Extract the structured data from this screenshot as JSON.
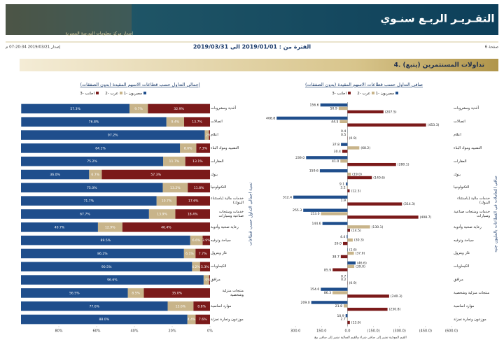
{
  "header": {
    "title": "التقـريـر الربـع سنـوي",
    "publisher": "إصدار مركز معلومات البورصة المصرية",
    "page": "صفحة 6",
    "period": "الفترة من : 2019/01/01 الى 2019/03/31",
    "issued": "إصدار 2019/03/21 07:20:34 م"
  },
  "section": "4. تداولات المستثمرين (يتبع)",
  "chart_data": [
    {
      "type": "bar",
      "orientation": "horizontal",
      "stacked": true,
      "title": "إجمالي التداول حسب قطاعات الاسهم المقيدة (بدون الصفقات)",
      "y_label": "نسبة اجمالي التداول حسب قطاعات",
      "categories": [
        "أغذية ومشروبات",
        "اتصالات",
        "اعلام",
        "التشييد ومواد البناء",
        "العقارات",
        "بنوك",
        "التكنولوجيا",
        "خدمات مالية (باستثناء البنوك)",
        "خدمات ومنتجات صناعية وسيارات",
        "رعاية صحية وأدوية",
        "سياحة وترفيه",
        "غاز وبترول",
        "الكيماويات",
        "مرافق",
        "منتجات منزلية وشخصية",
        "موارد اساسية",
        "موزعون وتجارة تجزئة"
      ],
      "series": [
        {
          "name": "مصريون -1",
          "color": "#1f4e8c",
          "values": [
            57.3,
            76.8,
            97.2,
            84.1,
            75.2,
            36.0,
            75.0,
            71.7,
            67.7,
            40.7,
            89.5,
            86.2,
            90.5,
            96.6,
            56.5,
            77.6,
            88.0
          ],
          "value_labels": [
            "57.3%",
            "76.8%",
            "97.2%",
            "84.1%",
            "75.2%",
            "36.0%",
            "75.0%",
            "71.7%",
            "67.7%",
            "40.7%",
            "89.5%",
            "86.2%",
            "90.5%",
            "96.6%",
            "56.5%",
            "77.6%",
            "88.0%"
          ]
        },
        {
          "name": "عرب -2",
          "color": "#c8b48a",
          "values": [
            9.7,
            9.4,
            2.2,
            8.6,
            11.7,
            6.7,
            13.2,
            10.7,
            13.9,
            12.9,
            6.6,
            6.1,
            4.2,
            2.9,
            8.5,
            13.6,
            4.4
          ],
          "value_labels": [
            "9.7%",
            "9.4%",
            "2.2%",
            "8.6%",
            "11.7%",
            "6.7%",
            "13.2%",
            "10.7%",
            "13.9%",
            "12.9%",
            "6.6%",
            "6.1%",
            "4.2%",
            "2.9%",
            "8.5%",
            "13.6%",
            "4.4%"
          ]
        },
        {
          "name": "اجانب -3",
          "color": "#7b1a1a",
          "values": [
            32.9,
            13.7,
            0.6,
            7.3,
            13.1,
            57.3,
            11.8,
            17.6,
            18.4,
            46.4,
            3.9,
            7.7,
            5.3,
            0.5,
            35.0,
            8.8,
            7.6
          ],
          "value_labels": [
            "32.9%",
            "13.7%",
            null,
            "7.3%",
            "13.1%",
            "57.3%",
            "11.8%",
            "17.6%",
            "18.4%",
            "46.4%",
            "3.9%",
            "7.7%",
            "5.3%",
            null,
            "35.0%",
            "8.8%",
            "7.6%"
          ]
        }
      ],
      "xlim": [
        100,
        0
      ],
      "xticks": [
        {
          "value": 80,
          "label": "80%"
        },
        {
          "value": 60,
          "label": "60%"
        },
        {
          "value": 40,
          "label": "40%"
        },
        {
          "value": 20,
          "label": "20%"
        },
        {
          "value": 0,
          "label": "0%"
        }
      ]
    },
    {
      "type": "bar",
      "orientation": "horizontal",
      "stacked": false,
      "title": "صافي التداول حسب قطاعات الاسهم المقيدة (بدون الصفقات)",
      "y_label": "صافي التعاملات في القطاعات بالمليون جنيه",
      "x_label": "القيم الموجبة تشير إلى صافي شراء والقيم السالبة تشير إلى صافي بيع",
      "categories": [
        "أغذية ومشروبات",
        "اتصالات",
        "اعلام",
        "التشييد ومواد البناء",
        "العقارات",
        "بنوك",
        "التكنولوجيا",
        "خدمات مالية (باستثناء البنوك)",
        "خدمات ومنتجات صناعية وسيارات",
        "رعاية صحية وأدوية",
        "سياحة وترفيه",
        "غاز وبترول",
        "الكيماويات",
        "مرافق",
        "منتجات منزلية وشخصية",
        "موارد اساسية",
        "موزعون وتجارة تجزئة"
      ],
      "series": [
        {
          "name": "مصريون -1",
          "color": "#1f4e8c",
          "values": [
            156.6,
            408.8,
            0.4,
            37.8,
            239.0,
            159.6,
            9.1,
            312.4,
            255.3,
            144.6,
            4.4,
            -1.6,
            -46.6,
            0.7,
            154.0,
            209.0,
            10.9
          ],
          "value_labels": [
            "156.6",
            "408.8",
            "0.4",
            "37.8",
            "239.0",
            "159.6",
            "9.1",
            "312.4",
            "255.3",
            "144.6",
            "4.4",
            "(1.6)",
            "(46.6)",
            "0.7",
            "154.0",
            "209.0",
            "10.9"
          ]
        },
        {
          "name": "عرب -2",
          "color": "#c8b48a",
          "values": [
            50.9,
            44.5,
            0.5,
            -68.2,
            41.0,
            -19.0,
            3.2,
            1.9,
            153.0,
            -130.1,
            -30.3,
            -37.0,
            -39.0,
            0.2,
            86.3,
            21.8,
            2.7
          ],
          "value_labels": [
            "50.9",
            "44.5",
            "0.5",
            "(68.2)",
            "41.0",
            "(19.0)",
            "3.2",
            "1.9",
            "153.0",
            "(130.1)",
            "(30.3)",
            "(37.0)",
            "(39.0)",
            "0.2",
            "86.3",
            "21.8",
            "2.7"
          ]
        },
        {
          "name": "اجانب -3",
          "color": "#7b1a1a",
          "values": [
            -207.5,
            -453.3,
            -0.9,
            30.4,
            -280.1,
            -140.6,
            -12.3,
            -314.3,
            -408.7,
            -14.5,
            26.0,
            38.7,
            85.9,
            -0.9,
            -240.3,
            -230.8,
            -13.6
          ],
          "value_labels": [
            "(207.5)",
            "(453.3)",
            "(0.9)",
            "30.4",
            "(280.1)",
            "(140.6)",
            "(12.3)",
            "(314.3)",
            "(408.7)",
            "(14.5)",
            "26.0",
            "38.7",
            "85.9",
            "(0.9)",
            "(240.3)",
            "(230.8)",
            "(13.6)"
          ]
        }
      ],
      "xlim": [
        450,
        -600
      ],
      "xticks": [
        {
          "value": 300,
          "label": "300.0"
        },
        {
          "value": 150,
          "label": "150.0"
        },
        {
          "value": 0,
          "label": "0.0"
        },
        {
          "value": -150,
          "label": "(150.0)"
        },
        {
          "value": -300,
          "label": "(300.0)"
        },
        {
          "value": -450,
          "label": "(450.0)"
        },
        {
          "value": -600,
          "label": "(600.0)"
        }
      ]
    }
  ]
}
